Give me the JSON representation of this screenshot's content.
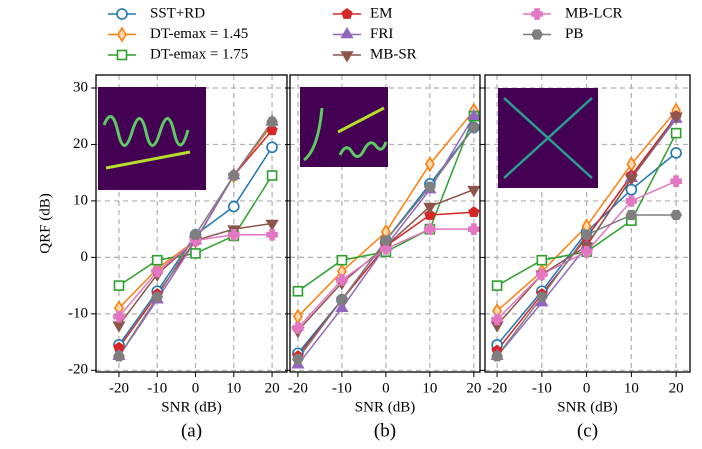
{
  "legend": [
    {
      "name": "SST+RD",
      "color": "#1f77b4",
      "marker": "circle"
    },
    {
      "name": "DT-emax = 1.45",
      "color": "#ff7f0e",
      "marker": "diamond"
    },
    {
      "name": "DT-emax = 1.75",
      "color": "#2ca02c",
      "marker": "square"
    },
    {
      "name": "EM",
      "color": "#d62728",
      "marker": "pentagon"
    },
    {
      "name": "FRI",
      "color": "#9467bd",
      "marker": "triangle-up"
    },
    {
      "name": "MB-SR",
      "color": "#8c564b",
      "marker": "triangle-down"
    },
    {
      "name": "MB-LCR",
      "color": "#e377c2",
      "marker": "plus"
    },
    {
      "name": "PB",
      "color": "#7f7f7f",
      "marker": "hexagon"
    }
  ],
  "chart_data": [
    {
      "type": "line",
      "label": "(a)",
      "xlabel": "SNR (dB)",
      "ylabel": "QRF (dB)",
      "x": [
        -20,
        -10,
        0,
        10,
        20
      ],
      "xlim": [
        -26,
        23.9
      ],
      "ylim": [
        -20.3,
        32.3
      ],
      "xticks": [
        -20,
        -10,
        0,
        10,
        20
      ],
      "yticks": [
        -20,
        -10,
        0,
        10,
        20,
        30
      ],
      "grid": true,
      "series": [
        {
          "values": [
            -15.5,
            -6,
            4,
            9,
            19.5
          ]
        },
        {
          "values": [
            -9,
            -2,
            3,
            14.5,
            23.5
          ]
        },
        {
          "values": [
            -5,
            -0.5,
            0.7,
            3.8,
            14.5
          ]
        },
        {
          "values": [
            -16,
            -6.5,
            3,
            14.5,
            22.5
          ]
        },
        {
          "values": [
            -17.5,
            -7.5,
            3,
            14.5,
            24
          ]
        },
        {
          "values": [
            -12,
            -3,
            3,
            5,
            6
          ]
        },
        {
          "values": [
            -10.5,
            -2.5,
            3,
            4,
            4
          ]
        },
        {
          "values": [
            -17.5,
            -7,
            4,
            14.5,
            24
          ]
        }
      ]
    },
    {
      "type": "line",
      "label": "(b)",
      "xlabel": "SNR (dB)",
      "x": [
        -20,
        -10,
        0,
        10,
        20
      ],
      "xlim": [
        -21.8,
        21.4
      ],
      "ylim": [
        -20.3,
        32.3
      ],
      "xticks": [
        -20,
        -10,
        0,
        10,
        20
      ],
      "yticks": [
        -20,
        -10,
        0,
        10,
        20,
        30
      ],
      "grid": true,
      "series": [
        {
          "values": [
            -17,
            -7.5,
            3,
            13,
            23
          ]
        },
        {
          "values": [
            -10.5,
            -2.5,
            4.5,
            16.5,
            26
          ]
        },
        {
          "values": [
            -6,
            -0.5,
            1,
            5,
            25
          ]
        },
        {
          "values": [
            -17.5,
            -7.5,
            2,
            7.5,
            8
          ]
        },
        {
          "values": [
            -19,
            -9,
            2,
            12,
            25
          ]
        },
        {
          "values": [
            -13,
            -4.5,
            2,
            9,
            12
          ]
        },
        {
          "values": [
            -12.5,
            -4,
            1.5,
            5,
            5
          ]
        },
        {
          "values": [
            -18,
            -7.5,
            3,
            12.5,
            23
          ]
        }
      ]
    },
    {
      "type": "line",
      "label": "(c)",
      "xlabel": "SNR (dB)",
      "x": [
        -20,
        -10,
        0,
        10,
        20
      ],
      "xlim": [
        -22.7,
        23.1
      ],
      "ylim": [
        -20.3,
        32.3
      ],
      "xticks": [
        -20,
        -10,
        0,
        10,
        20
      ],
      "yticks": [
        -20,
        -10,
        0,
        10,
        20,
        30
      ],
      "grid": true,
      "series": [
        {
          "values": [
            -15.5,
            -6,
            4.5,
            12,
            18.5
          ]
        },
        {
          "values": [
            -9.5,
            -2.5,
            5.5,
            16.5,
            26
          ]
        },
        {
          "values": [
            -5,
            -0.5,
            1,
            6.5,
            22
          ]
        },
        {
          "values": [
            -16.5,
            -6.5,
            3.5,
            14.5,
            25
          ]
        },
        {
          "values": [
            -17.5,
            -8,
            2,
            14,
            24.5
          ]
        },
        {
          "values": [
            -12,
            -3,
            2,
            14,
            25
          ]
        },
        {
          "values": [
            -11,
            -3,
            1,
            10,
            13.5
          ]
        },
        {
          "values": [
            -17.5,
            -7,
            4,
            7.5,
            7.5
          ]
        }
      ]
    }
  ]
}
